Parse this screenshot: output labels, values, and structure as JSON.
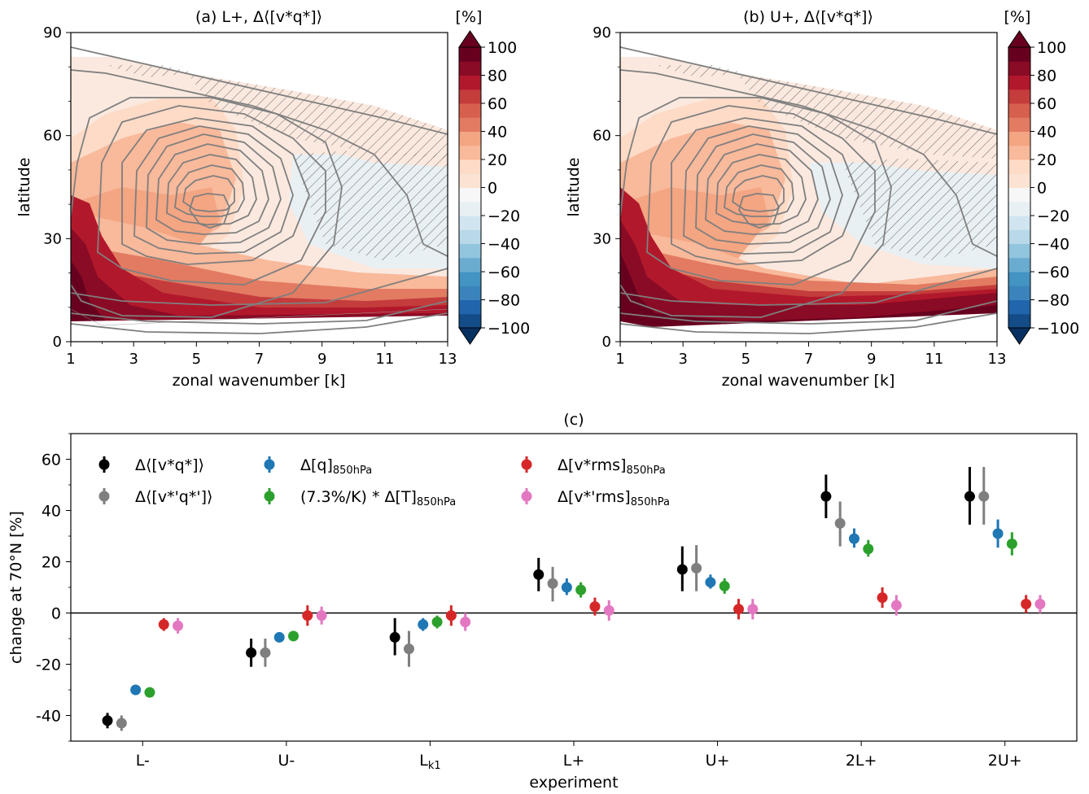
{
  "panels": [
    {
      "title": "(a) L+, Δ⟨[v*q*]⟩",
      "xlabel": "zonal wavenumber [k]",
      "ylabel": "latitude",
      "colorbar_unit": "[%]"
    },
    {
      "title": "(b) U+, Δ⟨[v*q*]⟩",
      "xlabel": "zonal wavenumber [k]",
      "ylabel": "latitude",
      "colorbar_unit": "[%]"
    }
  ],
  "bottom": {
    "title": "(c)",
    "xlabel": "experiment",
    "ylabel": "change at 70°N [%]"
  },
  "chart_data": [
    {
      "type": "heatmap",
      "title": "(a) L+, Δ⟨[v*q*]⟩",
      "xlabel": "zonal wavenumber [k]",
      "ylabel": "latitude",
      "xlim": [
        1,
        13
      ],
      "ylim": [
        0,
        90
      ],
      "xticks": [
        1,
        3,
        5,
        7,
        9,
        11,
        13
      ],
      "yticks": [
        0,
        30,
        60,
        90
      ],
      "colorbar": {
        "label": "[%]",
        "ticks": [
          100,
          80,
          60,
          40,
          20,
          0,
          -20,
          -40,
          -60,
          -80,
          -100
        ],
        "tick_labels": [
          "100",
          "80",
          "60",
          "40",
          "20",
          "0",
          "−20",
          "−40",
          "−60",
          "−80",
          "−100"
        ],
        "levels": [
          -100,
          -90,
          -80,
          -70,
          -60,
          -50,
          -40,
          -30,
          -20,
          -10,
          0,
          10,
          20,
          30,
          40,
          50,
          60,
          70,
          80,
          90,
          100
        ],
        "colors": [
          "#053061",
          "#134c87",
          "#2166ac",
          "#3a84bb",
          "#4393c3",
          "#6aacd0",
          "#92c5de",
          "#b9d9e9",
          "#d1e5f0",
          "#e8f0f4",
          "#f7f7f7",
          "#fbe3d4",
          "#fddbc7",
          "#f9b99b",
          "#f4a582",
          "#e27b62",
          "#d6604d",
          "#c43c3c",
          "#b2182b",
          "#8a0b25",
          "#67001f"
        ]
      },
      "sample_points": [
        {
          "k": 1,
          "lat": 12,
          "value": 100
        },
        {
          "k": 2,
          "lat": 20,
          "value": 90
        },
        {
          "k": 3,
          "lat": 40,
          "value": 50
        },
        {
          "k": 5,
          "lat": 40,
          "value": 40
        },
        {
          "k": 7,
          "lat": 40,
          "value": 20
        },
        {
          "k": 10,
          "lat": 40,
          "value": -10
        },
        {
          "k": 12,
          "lat": 40,
          "value": -10
        },
        {
          "k": 7,
          "lat": 10,
          "value": 80
        },
        {
          "k": 12,
          "lat": 10,
          "value": 70
        },
        {
          "k": 5,
          "lat": 70,
          "value": 10
        }
      ]
    },
    {
      "type": "heatmap",
      "title": "(b) U+, Δ⟨[v*q*]⟩",
      "xlabel": "zonal wavenumber [k]",
      "ylabel": "latitude",
      "xlim": [
        1,
        13
      ],
      "ylim": [
        0,
        90
      ],
      "xticks": [
        1,
        3,
        5,
        7,
        9,
        11,
        13
      ],
      "yticks": [
        0,
        30,
        60,
        90
      ],
      "colorbar": {
        "label": "[%]",
        "ticks": [
          100,
          80,
          60,
          40,
          20,
          0,
          -20,
          -40,
          -60,
          -80,
          -100
        ],
        "tick_labels": [
          "100",
          "80",
          "60",
          "40",
          "20",
          "0",
          "−20",
          "−40",
          "−60",
          "−80",
          "−100"
        ]
      },
      "sample_points": [
        {
          "k": 1,
          "lat": 15,
          "value": 100
        },
        {
          "k": 3,
          "lat": 10,
          "value": 100
        },
        {
          "k": 5,
          "lat": 40,
          "value": 40
        },
        {
          "k": 7,
          "lat": 40,
          "value": 10
        },
        {
          "k": 10,
          "lat": 35,
          "value": -10
        },
        {
          "k": 12,
          "lat": 10,
          "value": 90
        },
        {
          "k": 5,
          "lat": 70,
          "value": 10
        }
      ]
    },
    {
      "type": "scatter",
      "title": "(c)",
      "xlabel": "experiment",
      "ylabel": "change at 70°N [%]",
      "ylim": [
        -50,
        70
      ],
      "yticks": [
        -40,
        -20,
        0,
        20,
        40,
        60
      ],
      "ytick_labels": [
        "-40",
        "-20",
        "0",
        "20",
        "40",
        "60"
      ],
      "categories": [
        "L-",
        "U-",
        "Lk1",
        "L+",
        "U+",
        "2L+",
        "2U+"
      ],
      "category_labels": [
        {
          "main": "L-",
          "sub": ""
        },
        {
          "main": "U-",
          "sub": ""
        },
        {
          "main": "L",
          "sub": "k1"
        },
        {
          "main": "L+",
          "sub": ""
        },
        {
          "main": "U+",
          "sub": ""
        },
        {
          "main": "2L+",
          "sub": ""
        },
        {
          "main": "2U+",
          "sub": ""
        }
      ],
      "legend": {
        "placement": "top-left",
        "columns": 3
      },
      "series": [
        {
          "label": "Δ⟨[v*q*]⟩",
          "sub": "",
          "color": "#000000",
          "values": [
            -42,
            -15.5,
            -9.5,
            15,
            17,
            45.5,
            45.5
          ],
          "err_low": [
            -45,
            -21,
            -16.5,
            8.5,
            8.5,
            37,
            34.5
          ],
          "err_high": [
            -39,
            -10,
            -2,
            21.5,
            26,
            54,
            57
          ]
        },
        {
          "label": "Δ⟨[v*'q*']⟩",
          "sub": "",
          "color": "#7f7f7f",
          "values": [
            -43,
            -15.5,
            -14,
            11.5,
            17.5,
            35,
            45.5
          ],
          "err_low": [
            -46,
            -21,
            -21,
            4.5,
            8.5,
            26,
            34.5
          ],
          "err_high": [
            -40,
            -10,
            -7,
            18,
            26.5,
            43.5,
            57
          ]
        },
        {
          "label": "Δ[q]",
          "sub": "850hPa",
          "color": "#1f77b4",
          "values": [
            -30,
            -9.5,
            -4.5,
            10,
            12,
            29,
            31
          ],
          "err_low": [
            -31,
            -10.5,
            -7,
            7,
            9.5,
            25.5,
            25.5
          ],
          "err_high": [
            -29,
            -8.5,
            -2,
            13.5,
            15,
            33,
            36.5
          ]
        },
        {
          "label": "(7.3%/K) * Δ[T]",
          "sub": "850hPa",
          "color": "#2ca02c",
          "values": [
            -31,
            -9,
            -3.5,
            9,
            10.5,
            25,
            27
          ],
          "err_low": [
            -32,
            -10,
            -6,
            6,
            7.5,
            22,
            22.5
          ],
          "err_high": [
            -30,
            -8,
            -1,
            12,
            13.5,
            28.5,
            31.5
          ]
        },
        {
          "label": "Δ[v*rms]",
          "sub": "850hPa",
          "color": "#d62728",
          "values": [
            -4.5,
            -1,
            -1,
            2.5,
            1.5,
            6,
            3.5
          ],
          "err_low": [
            -7,
            -5,
            -5,
            -1,
            -2.5,
            2,
            0
          ],
          "err_high": [
            -2,
            3,
            3,
            6,
            5.5,
            10,
            7
          ]
        },
        {
          "label": "Δ[v*'rms]",
          "sub": "850hPa",
          "color": "#e377c2",
          "values": [
            -5,
            -1,
            -3.5,
            1,
            1.5,
            3,
            3.5
          ],
          "err_low": [
            -8,
            -4.5,
            -7,
            -3,
            -2.5,
            -1,
            0
          ],
          "err_high": [
            -2,
            2.5,
            0,
            5,
            5.5,
            7,
            7
          ]
        }
      ]
    }
  ]
}
